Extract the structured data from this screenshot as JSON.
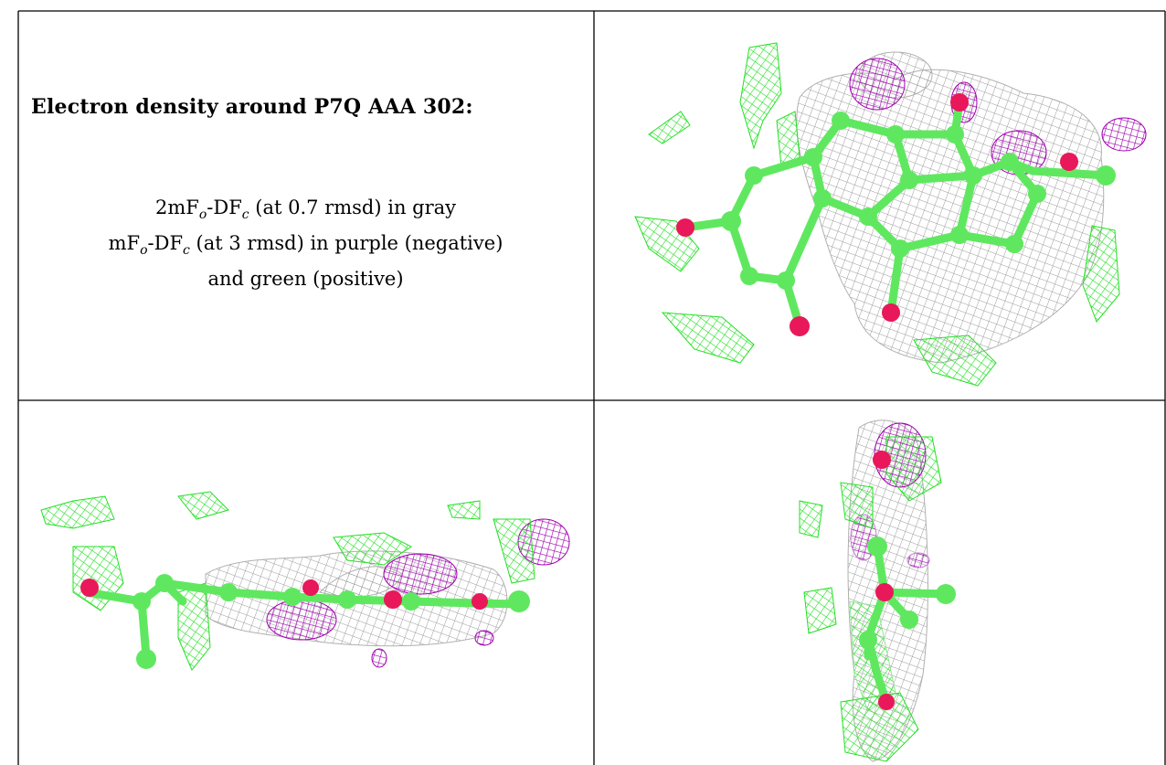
{
  "title": "Electron density around P7Q AAA 302:",
  "legend": {
    "line1": {
      "prefix": "2mF",
      "sub1": "o",
      "mid": "-DF",
      "sub2": "c",
      "suffix": " (at 0.7 rmsd) in gray"
    },
    "line2": {
      "prefix": "mF",
      "sub1": "o",
      "mid": "-DF",
      "sub2": "c",
      "suffix": " (at 3 rmsd) in purple (negative)"
    },
    "line3": "and green (positive)"
  },
  "colors": {
    "gray_mesh": "#9a9a9a",
    "negative_mesh": "#a000b0",
    "positive_mesh": "#22e022",
    "carbon": "#5fe85f",
    "oxygen": "#e8185a",
    "border": "#000000"
  },
  "panels": [
    {
      "view": "face-on"
    },
    {
      "view": "edge-on"
    },
    {
      "view": "end-on"
    }
  ]
}
